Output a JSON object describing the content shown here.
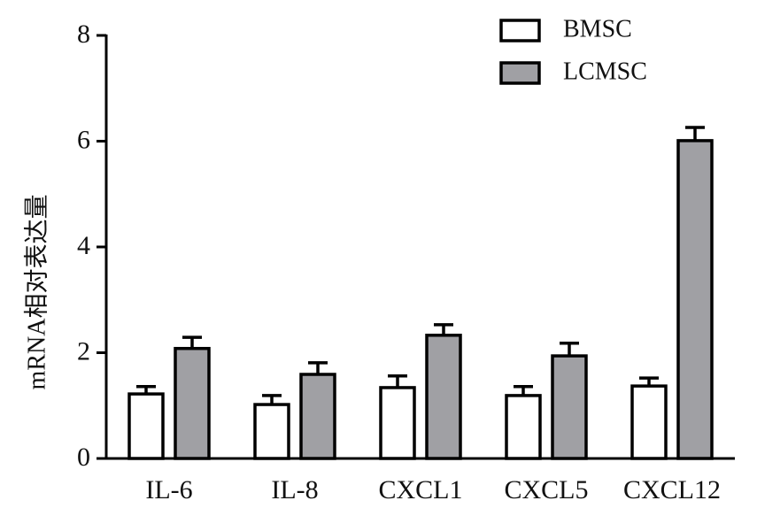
{
  "chart_data": {
    "type": "bar",
    "y_label": "mRNA相对表达量",
    "categories": [
      "IL-6",
      "IL-8",
      "CXCL1",
      "CXCL5",
      "CXCL12"
    ],
    "series": [
      {
        "name": "BMSC",
        "color": "#ffffff",
        "values": [
          1.22,
          1.02,
          1.34,
          1.19,
          1.37
        ],
        "errors": [
          0.14,
          0.17,
          0.22,
          0.17,
          0.15
        ]
      },
      {
        "name": "LCMSC",
        "color": "#a0a0a4",
        "values": [
          2.08,
          1.59,
          2.33,
          1.94,
          6.01
        ],
        "errors": [
          0.21,
          0.22,
          0.2,
          0.24,
          0.25
        ]
      }
    ],
    "ylim": [
      0,
      8
    ],
    "yticks": [
      0,
      2,
      4,
      6,
      8
    ],
    "grid": false,
    "legend": "upper right"
  }
}
